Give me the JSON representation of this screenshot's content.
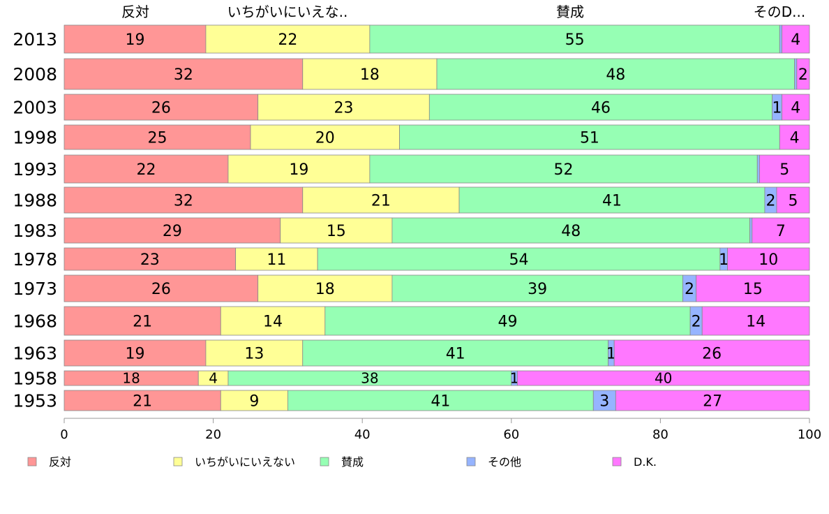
{
  "chart_data": {
    "type": "bar",
    "orientation": "horizontal",
    "stacked": true,
    "categories": [
      "2013",
      "2008",
      "2003",
      "1998",
      "1993",
      "1988",
      "1983",
      "1978",
      "1973",
      "1968",
      "1963",
      "1958",
      "1953"
    ],
    "series": [
      {
        "name": "反対",
        "color": "#ff9696",
        "values": [
          19,
          32,
          26,
          25,
          22,
          32,
          29,
          23,
          26,
          21,
          19,
          18,
          21
        ]
      },
      {
        "name": "いちがいにいえない",
        "color": "#ffff96",
        "values": [
          22,
          18,
          23,
          20,
          19,
          21,
          15,
          11,
          18,
          14,
          13,
          4,
          9
        ]
      },
      {
        "name": "賛成",
        "color": "#96ffb4",
        "values": [
          55,
          48,
          46,
          51,
          52,
          41,
          48,
          54,
          39,
          49,
          41,
          38,
          41
        ]
      },
      {
        "name": "その他",
        "color": "#96b4ff",
        "values": [
          0.3,
          0.3,
          1.3,
          0,
          0.3,
          1.6,
          0.3,
          1,
          1.8,
          1.6,
          0.8,
          0.8,
          3
        ]
      },
      {
        "name": "D.K.",
        "color": "#ff78ff",
        "values": [
          4,
          2,
          4,
          4,
          5,
          5,
          7,
          10,
          15,
          14,
          26,
          40,
          27
        ]
      }
    ],
    "labels": [
      [
        "19",
        "22",
        "55",
        "",
        "4"
      ],
      [
        "32",
        "18",
        "48",
        "",
        "2"
      ],
      [
        "26",
        "23",
        "46",
        "1",
        "4"
      ],
      [
        "25",
        "20",
        "51",
        "",
        "4"
      ],
      [
        "22",
        "19",
        "52",
        "",
        "5"
      ],
      [
        "32",
        "21",
        "41",
        "2",
        "5"
      ],
      [
        "29",
        "15",
        "48",
        "",
        "7"
      ],
      [
        "23",
        "11",
        "54",
        "1",
        "10"
      ],
      [
        "26",
        "18",
        "39",
        "2",
        "15"
      ],
      [
        "21",
        "14",
        "49",
        "2",
        "14"
      ],
      [
        "19",
        "13",
        "41",
        "1",
        "26"
      ],
      [
        "18",
        "4",
        "38",
        "1",
        "40"
      ],
      [
        "21",
        "9",
        "41",
        "3",
        "27"
      ]
    ],
    "top_labels": [
      "反対",
      "いちがいにいえな..",
      "賛成",
      "その..",
      "D..."
    ],
    "xlim": [
      0,
      100
    ],
    "xticks": [
      "0",
      "20",
      "40",
      "60",
      "80",
      "100"
    ],
    "legend": {
      "placement": "bottom",
      "entries": [
        "反対",
        "いちがいにいえない",
        "賛成",
        "その他",
        "D.K."
      ]
    }
  }
}
